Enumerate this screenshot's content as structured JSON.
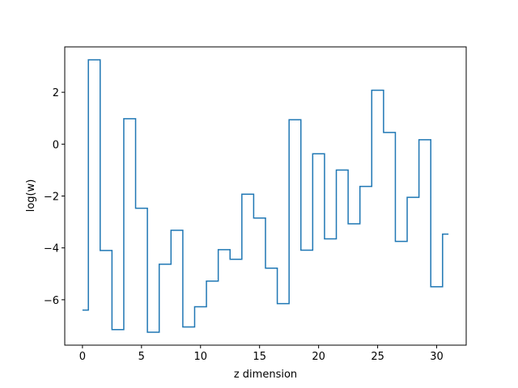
{
  "chart_data": {
    "type": "line",
    "drawstyle": "steps-mid",
    "title": "",
    "xlabel": "z dimension",
    "ylabel": "log(w)",
    "xlim": [
      -1.5,
      32.5
    ],
    "ylim": [
      -7.75,
      3.75
    ],
    "xticks": [
      0,
      5,
      10,
      15,
      20,
      25,
      30
    ],
    "yticks": [
      -6,
      -4,
      -2,
      0,
      2
    ],
    "grid": false,
    "line_color": "#1f77b4",
    "x": [
      0,
      1,
      2,
      3,
      4,
      5,
      6,
      7,
      8,
      9,
      10,
      11,
      12,
      13,
      14,
      15,
      16,
      17,
      18,
      19,
      20,
      21,
      22,
      23,
      24,
      25,
      26,
      27,
      28,
      29,
      30,
      31
    ],
    "values": [
      -6.4,
      3.25,
      -4.1,
      -7.15,
      0.98,
      -2.47,
      -7.25,
      -4.63,
      -3.32,
      -7.05,
      -6.27,
      -5.28,
      -4.07,
      -4.44,
      -1.93,
      -2.85,
      -4.78,
      -6.15,
      0.94,
      -4.09,
      -0.37,
      -3.65,
      -1.0,
      -3.07,
      -1.63,
      2.08,
      0.45,
      -3.75,
      -2.05,
      0.17,
      -5.5,
      -3.47
    ]
  }
}
